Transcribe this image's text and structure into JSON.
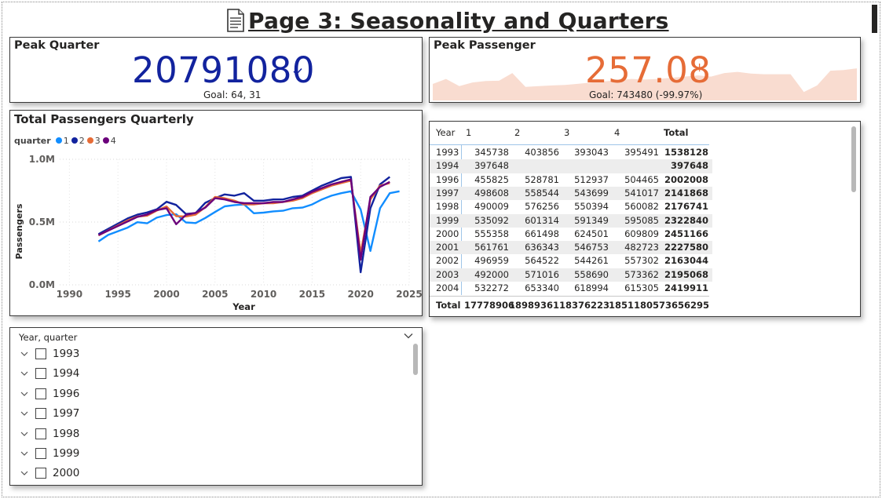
{
  "page": {
    "title": "Page 3: Seasonality and Quarters",
    "title_icon": "page-facing-up-icon"
  },
  "kpi_quarter": {
    "title": "Peak Quarter",
    "value": "20791080",
    "goal": "Goal: 64, 31",
    "indicator_icon": "check-icon",
    "value_color": "#12239e"
  },
  "kpi_passenger": {
    "title": "Peak Passenger",
    "value": "257.08",
    "goal": "Goal: 743480 (-99.97%)",
    "indicator": "!",
    "value_color": "#e66c37",
    "trend_color": "#f9dcd0",
    "trend_values": [
      0.45,
      0.62,
      0.38,
      0.5,
      0.55,
      0.56,
      0.82,
      0.35,
      0.38,
      0.4,
      0.42,
      0.46,
      0.5,
      0.54,
      0.58,
      0.62,
      0.6,
      0.62,
      0.66,
      0.7,
      0.74,
      0.7,
      0.82,
      0.86,
      0.8,
      0.78,
      0.78,
      0.78,
      0.18,
      0.4,
      0.9,
      0.92,
      0.98
    ]
  },
  "line_chart": {
    "title": "Total Passengers Quarterly",
    "legend_title": "quarter",
    "xlabel": "Year",
    "ylabel": "Passengers",
    "y_ticks": [
      "0.0M",
      "0.5M",
      "1.0M"
    ],
    "x_ticks": [
      "1990",
      "1995",
      "2000",
      "2005",
      "2010",
      "2015",
      "2020",
      "2025"
    ]
  },
  "chart_data": {
    "type": "line",
    "title": "Total Passengers Quarterly",
    "xlabel": "Year",
    "ylabel": "Passengers",
    "xlim": [
      1989,
      2025
    ],
    "ylim": [
      0,
      1000000
    ],
    "grid": true,
    "legend_position": "top-left",
    "x": [
      1993,
      1994,
      1996,
      1997,
      1998,
      1999,
      2000,
      2001,
      2002,
      2003,
      2004,
      2005,
      2006,
      2007,
      2008,
      2009,
      2010,
      2011,
      2012,
      2013,
      2014,
      2015,
      2016,
      2017,
      2018,
      2019,
      2020,
      2021,
      2022,
      2023,
      2024
    ],
    "series": [
      {
        "name": "1",
        "color": "#118dff",
        "values": [
          345738,
          397648,
          455825,
          498608,
          490009,
          535092,
          555358,
          561761,
          496959,
          492000,
          532272,
          580000,
          625000,
          635000,
          640000,
          570000,
          575000,
          585000,
          590000,
          610000,
          615000,
          640000,
          680000,
          710000,
          730000,
          745000,
          600000,
          270000,
          610000,
          730000,
          745000
        ]
      },
      {
        "name": "2",
        "color": "#12239e",
        "values": [
          403856,
          null,
          528781,
          558544,
          576256,
          601314,
          661498,
          636343,
          564522,
          571016,
          653340,
          690000,
          720000,
          710000,
          730000,
          670000,
          670000,
          680000,
          680000,
          700000,
          710000,
          750000,
          790000,
          820000,
          850000,
          860000,
          100000,
          610000,
          800000,
          860000,
          null
        ]
      },
      {
        "name": "3",
        "color": "#e66c37",
        "values": [
          393043,
          null,
          512937,
          543699,
          550394,
          591349,
          624501,
          546753,
          544261,
          558690,
          618994,
          700000,
          690000,
          670000,
          640000,
          640000,
          650000,
          650000,
          660000,
          670000,
          690000,
          730000,
          760000,
          790000,
          810000,
          830000,
          250000,
          680000,
          790000,
          810000,
          null
        ]
      },
      {
        "name": "4",
        "color": "#6b007b",
        "values": [
          395491,
          null,
          504465,
          541017,
          560082,
          595085,
          609809,
          482723,
          557302,
          573362,
          615305,
          690000,
          680000,
          660000,
          650000,
          650000,
          650000,
          660000,
          660000,
          680000,
          700000,
          740000,
          770000,
          800000,
          820000,
          840000,
          200000,
          700000,
          780000,
          820000,
          null
        ]
      }
    ]
  },
  "matrix": {
    "headers": [
      "Year",
      "1",
      "2",
      "3",
      "4",
      "Total"
    ],
    "rows": [
      [
        "1993",
        "345738",
        "403856",
        "393043",
        "395491",
        "1538128"
      ],
      [
        "1994",
        "397648",
        "",
        "",
        "",
        "397648"
      ],
      [
        "1996",
        "455825",
        "528781",
        "512937",
        "504465",
        "2002008"
      ],
      [
        "1997",
        "498608",
        "558544",
        "543699",
        "541017",
        "2141868"
      ],
      [
        "1998",
        "490009",
        "576256",
        "550394",
        "560082",
        "2176741"
      ],
      [
        "1999",
        "535092",
        "601314",
        "591349",
        "595085",
        "2322840"
      ],
      [
        "2000",
        "555358",
        "661498",
        "624501",
        "609809",
        "2451166"
      ],
      [
        "2001",
        "561761",
        "636343",
        "546753",
        "482723",
        "2227580"
      ],
      [
        "2002",
        "496959",
        "564522",
        "544261",
        "557302",
        "2163044"
      ],
      [
        "2003",
        "492000",
        "571016",
        "558690",
        "573362",
        "2195068"
      ],
      [
        "2004",
        "532272",
        "653340",
        "618994",
        "615305",
        "2419911"
      ]
    ],
    "total": [
      "Total",
      "17778906",
      "18989361",
      "18376223",
      "18511805",
      "73656295"
    ]
  },
  "slicer": {
    "title": "Year, quarter",
    "items": [
      "1993",
      "1994",
      "1996",
      "1997",
      "1998",
      "1999",
      "2000"
    ]
  }
}
